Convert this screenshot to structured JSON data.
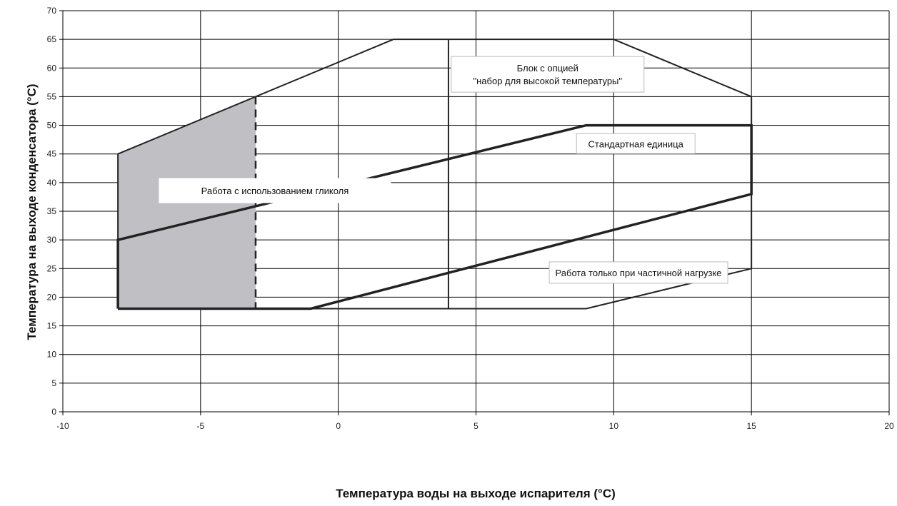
{
  "chart_data": {
    "type": "line",
    "xlabel": "Температура воды на выходе испарителя  (°C)",
    "ylabel": "Температура на выходе конденсатора (°C)",
    "xlim": [
      -10,
      20
    ],
    "ylim": [
      0,
      70
    ],
    "x_ticks": [
      -10,
      -5,
      0,
      5,
      10,
      15,
      20
    ],
    "y_ticks": [
      0,
      5,
      10,
      15,
      20,
      25,
      30,
      35,
      40,
      45,
      50,
      55,
      60,
      65,
      70
    ],
    "grid": true,
    "shaded_region": {
      "name": "glycol",
      "points": [
        [
          -8,
          18
        ],
        [
          -8,
          45
        ],
        [
          -3,
          55
        ],
        [
          -3,
          18
        ]
      ],
      "fill": "#c0c0c4"
    },
    "series": [
      {
        "id": "high_temp_kit",
        "style": "thin",
        "points": [
          [
            -8,
            18
          ],
          [
            -8,
            45
          ],
          [
            2,
            65
          ],
          [
            10,
            65
          ],
          [
            15,
            55
          ],
          [
            15,
            25
          ],
          [
            9,
            18
          ],
          [
            -8,
            18
          ]
        ]
      },
      {
        "id": "standard_unit",
        "style": "thick",
        "points": [
          [
            -8,
            18
          ],
          [
            -8,
            30
          ],
          [
            9,
            50
          ],
          [
            15,
            50
          ],
          [
            15,
            38
          ],
          [
            -1,
            18
          ],
          [
            -8,
            18
          ]
        ]
      },
      {
        "id": "glycol_boundary",
        "style": "dashed",
        "points": [
          [
            -3,
            55
          ],
          [
            -3,
            18
          ]
        ]
      },
      {
        "id": "partial_load_boundary",
        "style": "thin",
        "points": [
          [
            4,
            65
          ],
          [
            4,
            18
          ]
        ]
      }
    ],
    "annotations": [
      {
        "id": "high-temp-kit-label",
        "lines": [
          "Блок с опцией",
          "\"набор для высокой температуры\""
        ]
      },
      {
        "id": "standard-unit-label",
        "lines": [
          "Стандартная единица"
        ]
      },
      {
        "id": "glycol-label",
        "lines": [
          "Работа с использованием гликоля"
        ]
      },
      {
        "id": "partial-load-label",
        "lines": [
          "Работа только при частичной нагрузке"
        ]
      }
    ]
  }
}
